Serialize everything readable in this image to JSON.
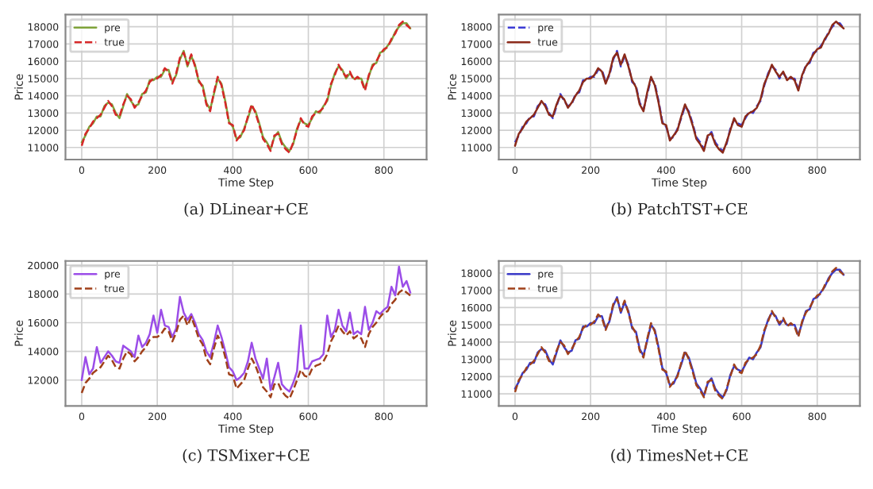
{
  "chart_data": [
    {
      "type": "line",
      "title": "(a) DLinear+CE",
      "xlabel": "Time Step",
      "ylabel": "Price",
      "xlim": [
        -43,
        913
      ],
      "xticks": [
        0,
        200,
        400,
        600,
        800
      ],
      "ylim": [
        10300,
        18700
      ],
      "yticks": [
        11000,
        12000,
        13000,
        14000,
        15000,
        16000,
        17000,
        18000
      ],
      "grid": true,
      "legend": "top left",
      "x": [
        0,
        10,
        20,
        30,
        40,
        50,
        60,
        70,
        80,
        90,
        100,
        110,
        120,
        130,
        140,
        150,
        160,
        170,
        180,
        190,
        200,
        210,
        220,
        230,
        240,
        250,
        260,
        270,
        280,
        290,
        300,
        310,
        320,
        330,
        340,
        350,
        360,
        370,
        380,
        390,
        400,
        410,
        420,
        430,
        440,
        450,
        460,
        470,
        480,
        490,
        500,
        510,
        520,
        530,
        540,
        550,
        560,
        570,
        580,
        590,
        600,
        610,
        620,
        630,
        640,
        650,
        660,
        670,
        680,
        690,
        700,
        710,
        720,
        730,
        740,
        750,
        760,
        770,
        780,
        790,
        800,
        810,
        820,
        830,
        840,
        850,
        860,
        870
      ],
      "series": [
        {
          "name": "pre",
          "color": "#7fa33a",
          "line_style": "solid",
          "values": [
            11300,
            11700,
            12200,
            12400,
            12800,
            12800,
            13400,
            13600,
            13500,
            13000,
            12700,
            13400,
            14100,
            13700,
            13400,
            13500,
            14100,
            14200,
            14900,
            14900,
            15100,
            15100,
            15500,
            15500,
            14800,
            15200,
            16100,
            16600,
            15700,
            16300,
            15800,
            14800,
            14600,
            13600,
            13200,
            14100,
            15000,
            14700,
            13700,
            12500,
            12200,
            11500,
            11600,
            12100,
            12700,
            13400,
            13100,
            12400,
            11600,
            11300,
            10900,
            11600,
            11900,
            11300,
            11000,
            10800,
            11200,
            12100,
            12600,
            12400,
            12300,
            12700,
            13100,
            13000,
            13400,
            13700,
            14600,
            15300,
            15700,
            15500,
            15000,
            15300,
            15000,
            15000,
            15000,
            14400,
            15100,
            15800,
            15900,
            16500,
            16600,
            16900,
            17200,
            17700,
            18000,
            18200,
            18200,
            17900
          ]
        },
        {
          "name": "true",
          "color": "#d62728",
          "line_style": "dashed",
          "values": [
            11100,
            11800,
            12100,
            12500,
            12700,
            12900,
            13300,
            13700,
            13400,
            12900,
            12800,
            13500,
            14000,
            13800,
            13300,
            13600,
            14000,
            14300,
            14800,
            15000,
            15000,
            15200,
            15600,
            15400,
            14700,
            15300,
            16200,
            16500,
            15800,
            16400,
            15700,
            14900,
            14500,
            13500,
            13100,
            14200,
            15100,
            14600,
            13600,
            12400,
            12300,
            11400,
            11700,
            12000,
            12800,
            13500,
            13000,
            12300,
            11500,
            11200,
            10800,
            11700,
            11800,
            11200,
            10900,
            10700,
            11300,
            12000,
            12700,
            12300,
            12200,
            12800,
            13000,
            13100,
            13300,
            13800,
            14700,
            15200,
            15800,
            15400,
            15100,
            15400,
            14900,
            15100,
            14900,
            14300,
            15200,
            15700,
            16000,
            16400,
            16700,
            16800,
            17300,
            17600,
            18100,
            18300,
            18100,
            17900
          ]
        }
      ]
    },
    {
      "type": "line",
      "title": "(b) PatchTST+CE",
      "xlabel": "Time Step",
      "ylabel": "Price",
      "xlim": [
        -43,
        913
      ],
      "xticks": [
        0,
        200,
        400,
        600,
        800
      ],
      "ylim": [
        10300,
        18700
      ],
      "yticks": [
        11000,
        12000,
        13000,
        14000,
        15000,
        16000,
        17000,
        18000
      ],
      "grid": true,
      "legend": "top left",
      "x": [
        0,
        10,
        20,
        30,
        40,
        50,
        60,
        70,
        80,
        90,
        100,
        110,
        120,
        130,
        140,
        150,
        160,
        170,
        180,
        190,
        200,
        210,
        220,
        230,
        240,
        250,
        260,
        270,
        280,
        290,
        300,
        310,
        320,
        330,
        340,
        350,
        360,
        370,
        380,
        390,
        400,
        410,
        420,
        430,
        440,
        450,
        460,
        470,
        480,
        490,
        500,
        510,
        520,
        530,
        540,
        550,
        560,
        570,
        580,
        590,
        600,
        610,
        620,
        630,
        640,
        650,
        660,
        670,
        680,
        690,
        700,
        710,
        720,
        730,
        740,
        750,
        760,
        770,
        780,
        790,
        800,
        810,
        820,
        830,
        840,
        850,
        860,
        870
      ],
      "series": [
        {
          "name": "pre",
          "color": "#3b3bd6",
          "line_style": "dashed",
          "values": [
            11300,
            11700,
            12200,
            12400,
            12800,
            12800,
            13400,
            13600,
            13500,
            13000,
            12700,
            13400,
            14100,
            13700,
            13400,
            13500,
            14100,
            14200,
            14900,
            14900,
            15100,
            15100,
            15500,
            15500,
            14800,
            15200,
            16100,
            16600,
            15700,
            16300,
            15800,
            14800,
            14600,
            13600,
            13200,
            14100,
            15000,
            14700,
            13700,
            12500,
            12200,
            11500,
            11600,
            12100,
            12700,
            13400,
            13100,
            12400,
            11600,
            11300,
            10900,
            11600,
            11900,
            11300,
            11000,
            10800,
            11200,
            12100,
            12600,
            12400,
            12300,
            12700,
            13100,
            13000,
            13400,
            13700,
            14600,
            15300,
            15700,
            15500,
            15000,
            15300,
            15000,
            15000,
            15000,
            14400,
            15100,
            15800,
            15900,
            16500,
            16600,
            16900,
            17200,
            17700,
            18000,
            18200,
            18200,
            17900
          ]
        },
        {
          "name": "true",
          "color": "#8b2a1a",
          "line_style": "solid",
          "values": [
            11100,
            11800,
            12100,
            12500,
            12700,
            12900,
            13300,
            13700,
            13400,
            12900,
            12800,
            13500,
            14000,
            13800,
            13300,
            13600,
            14000,
            14300,
            14800,
            15000,
            15000,
            15200,
            15600,
            15400,
            14700,
            15300,
            16200,
            16500,
            15800,
            16400,
            15700,
            14900,
            14500,
            13500,
            13100,
            14200,
            15100,
            14600,
            13600,
            12400,
            12300,
            11400,
            11700,
            12000,
            12800,
            13500,
            13000,
            12300,
            11500,
            11200,
            10800,
            11700,
            11800,
            11200,
            10900,
            10700,
            11300,
            12000,
            12700,
            12300,
            12200,
            12800,
            13000,
            13100,
            13300,
            13800,
            14700,
            15200,
            15800,
            15400,
            15100,
            15400,
            14900,
            15100,
            14900,
            14300,
            15200,
            15700,
            16000,
            16400,
            16700,
            16800,
            17300,
            17600,
            18100,
            18300,
            18100,
            17900
          ]
        }
      ]
    },
    {
      "type": "line",
      "title": "(c) TSMixer+CE",
      "xlabel": "Time Step",
      "ylabel": "Price",
      "xlim": [
        -43,
        913
      ],
      "xticks": [
        0,
        200,
        400,
        600,
        800
      ],
      "ylim": [
        10200,
        20300
      ],
      "yticks": [
        12000,
        14000,
        16000,
        18000,
        20000
      ],
      "grid": true,
      "legend": "top left",
      "x": [
        0,
        10,
        20,
        30,
        40,
        50,
        60,
        70,
        80,
        90,
        100,
        110,
        120,
        130,
        140,
        150,
        160,
        170,
        180,
        190,
        200,
        210,
        220,
        230,
        240,
        250,
        260,
        270,
        280,
        290,
        300,
        310,
        320,
        330,
        340,
        350,
        360,
        370,
        380,
        390,
        400,
        410,
        420,
        430,
        440,
        450,
        460,
        470,
        480,
        490,
        500,
        510,
        520,
        530,
        540,
        550,
        560,
        570,
        580,
        590,
        600,
        610,
        620,
        630,
        640,
        650,
        660,
        670,
        680,
        690,
        700,
        710,
        720,
        730,
        740,
        750,
        760,
        770,
        780,
        790,
        800,
        810,
        820,
        830,
        840,
        850,
        860,
        870
      ],
      "series": [
        {
          "name": "pre",
          "color": "#9b4de8",
          "line_style": "solid",
          "values": [
            12000,
            13600,
            12400,
            12800,
            14300,
            13200,
            13600,
            14000,
            13700,
            13300,
            13200,
            14400,
            14200,
            14000,
            13600,
            15100,
            14300,
            14600,
            15200,
            16500,
            15300,
            16900,
            15800,
            15700,
            15000,
            15600,
            17800,
            16700,
            16200,
            16600,
            16000,
            15200,
            14800,
            14000,
            13600,
            14600,
            15800,
            15000,
            14000,
            12900,
            12600,
            12000,
            12200,
            12500,
            13300,
            14600,
            13500,
            12800,
            12100,
            13500,
            11300,
            12200,
            13200,
            11700,
            11400,
            11200,
            11800,
            12600,
            15800,
            12800,
            12800,
            13300,
            13400,
            13500,
            13800,
            16500,
            15000,
            15500,
            16900,
            15800,
            15400,
            16700,
            15200,
            15400,
            15200,
            17100,
            15500,
            16000,
            16800,
            16600,
            16900,
            17100,
            18500,
            17900,
            19900,
            18500,
            18900,
            18100
          ]
        },
        {
          "name": "true",
          "color": "#a0401a",
          "line_style": "dashed",
          "values": [
            11100,
            11800,
            12100,
            12500,
            12700,
            12900,
            13300,
            13700,
            13400,
            12900,
            12800,
            13500,
            14000,
            13800,
            13300,
            13600,
            14000,
            14300,
            14800,
            15000,
            15000,
            15200,
            15600,
            15400,
            14700,
            15300,
            16200,
            16500,
            15800,
            16400,
            15700,
            14900,
            14500,
            13500,
            13100,
            14200,
            15100,
            14600,
            13600,
            12400,
            12300,
            11400,
            11700,
            12000,
            12800,
            13500,
            13000,
            12300,
            11500,
            11200,
            10800,
            11700,
            11800,
            11200,
            10900,
            10700,
            11300,
            12000,
            12700,
            12300,
            12200,
            12800,
            13000,
            13100,
            13300,
            13800,
            14700,
            15200,
            15800,
            15400,
            15100,
            15400,
            14900,
            15100,
            14900,
            14300,
            15200,
            15700,
            16000,
            16400,
            16700,
            16800,
            17300,
            17600,
            18100,
            18300,
            18100,
            17900
          ]
        }
      ]
    },
    {
      "type": "line",
      "title": "(d) TimesNet+CE",
      "xlabel": "Time Step",
      "ylabel": "Price",
      "xlim": [
        -43,
        913
      ],
      "xticks": [
        0,
        200,
        400,
        600,
        800
      ],
      "ylim": [
        10300,
        18700
      ],
      "yticks": [
        11000,
        12000,
        13000,
        14000,
        15000,
        16000,
        17000,
        18000
      ],
      "grid": true,
      "legend": "top left",
      "x": [
        0,
        10,
        20,
        30,
        40,
        50,
        60,
        70,
        80,
        90,
        100,
        110,
        120,
        130,
        140,
        150,
        160,
        170,
        180,
        190,
        200,
        210,
        220,
        230,
        240,
        250,
        260,
        270,
        280,
        290,
        300,
        310,
        320,
        330,
        340,
        350,
        360,
        370,
        380,
        390,
        400,
        410,
        420,
        430,
        440,
        450,
        460,
        470,
        480,
        490,
        500,
        510,
        520,
        530,
        540,
        550,
        560,
        570,
        580,
        590,
        600,
        610,
        620,
        630,
        640,
        650,
        660,
        670,
        680,
        690,
        700,
        710,
        720,
        730,
        740,
        750,
        760,
        770,
        780,
        790,
        800,
        810,
        820,
        830,
        840,
        850,
        860,
        870
      ],
      "series": [
        {
          "name": "pre",
          "color": "#3a3ac8",
          "line_style": "solid",
          "values": [
            11300,
            11700,
            12200,
            12400,
            12800,
            12800,
            13400,
            13600,
            13500,
            13000,
            12700,
            13400,
            14100,
            13700,
            13400,
            13500,
            14100,
            14200,
            14900,
            14900,
            15100,
            15100,
            15500,
            15500,
            14800,
            15200,
            16100,
            16600,
            15700,
            16300,
            15800,
            14800,
            14600,
            13600,
            13200,
            14100,
            15000,
            14700,
            13700,
            12500,
            12200,
            11500,
            11600,
            12100,
            12700,
            13400,
            13100,
            12400,
            11600,
            11300,
            10900,
            11600,
            11900,
            11300,
            11000,
            10800,
            11200,
            12100,
            12600,
            12400,
            12300,
            12700,
            13100,
            13000,
            13400,
            13700,
            14600,
            15300,
            15700,
            15500,
            15000,
            15300,
            15000,
            15000,
            15000,
            14400,
            15100,
            15800,
            15900,
            16500,
            16600,
            16900,
            17200,
            17700,
            18000,
            18200,
            18200,
            17900
          ]
        },
        {
          "name": "true",
          "color": "#a0401a",
          "line_style": "dashed",
          "values": [
            11100,
            11800,
            12100,
            12500,
            12700,
            12900,
            13300,
            13700,
            13400,
            12900,
            12800,
            13500,
            14000,
            13800,
            13300,
            13600,
            14000,
            14300,
            14800,
            15000,
            15000,
            15200,
            15600,
            15400,
            14700,
            15300,
            16200,
            16500,
            15800,
            16400,
            15700,
            14900,
            14500,
            13500,
            13100,
            14200,
            15100,
            14600,
            13600,
            12400,
            12300,
            11400,
            11700,
            12000,
            12800,
            13500,
            13000,
            12300,
            11500,
            11200,
            10800,
            11700,
            11800,
            11200,
            10900,
            10700,
            11300,
            12000,
            12700,
            12300,
            12200,
            12800,
            13000,
            13100,
            13300,
            13800,
            14700,
            15200,
            15800,
            15400,
            15100,
            15400,
            14900,
            15100,
            14900,
            14300,
            15200,
            15700,
            16000,
            16400,
            16700,
            16800,
            17300,
            17600,
            18100,
            18300,
            18100,
            17900
          ]
        }
      ]
    }
  ]
}
